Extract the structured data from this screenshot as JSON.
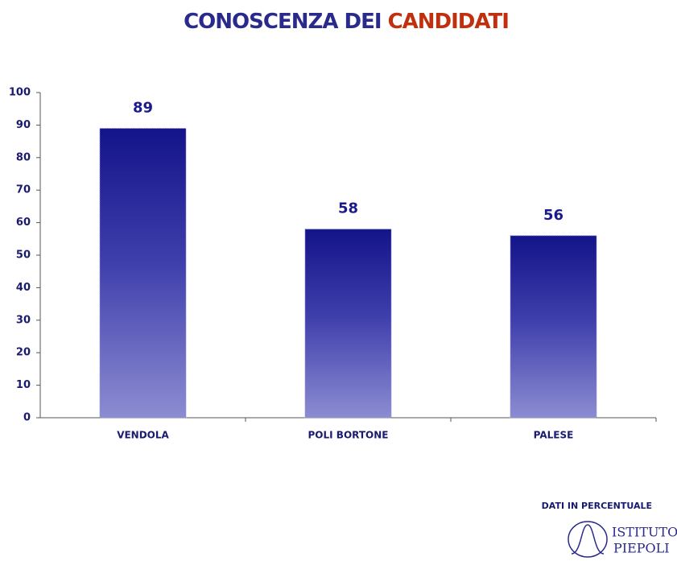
{
  "chart_data": {
    "type": "bar",
    "title": "CONOSCENZA DEI",
    "title_highlight": "CANDIDATI",
    "categories": [
      "VENDOLA",
      "POLI BORTONE",
      "PALESE"
    ],
    "values": [
      89,
      58,
      56
    ],
    "ylim": [
      0,
      100
    ],
    "yticks": [
      0,
      10,
      20,
      30,
      40,
      50,
      60,
      70,
      80,
      90,
      100
    ],
    "color": "#1a1a8c",
    "grid": false,
    "note": "DATI IN PERCENTUALE"
  },
  "logo": {
    "line1": "ISTITUTO",
    "line2": "PIEPOLI"
  }
}
